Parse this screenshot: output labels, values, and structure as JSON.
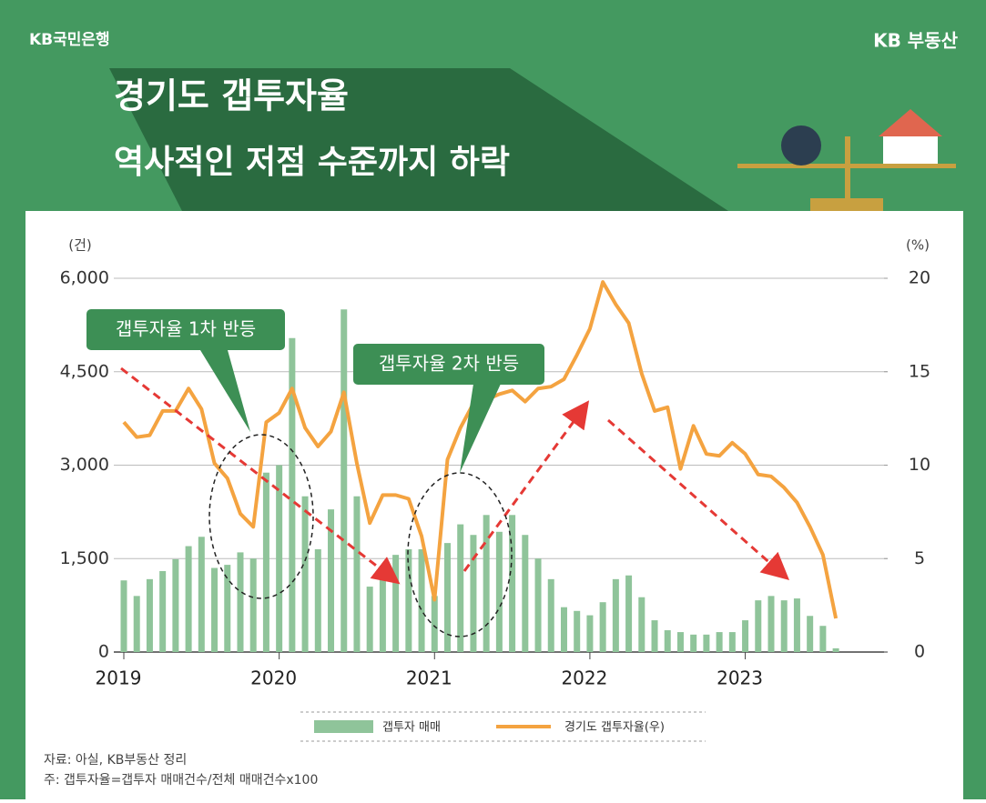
{
  "header": {
    "left": "KB국민은행",
    "right": "KB 부동산"
  },
  "chart_data": {
    "type": "bar",
    "title": "경기도 갭투자율",
    "subtitle": "역사적인 저점 수준까지 하락",
    "ylabel": "(건)",
    "y2label": "(%)",
    "categories": [
      "2019",
      null,
      null,
      null,
      null,
      null,
      null,
      null,
      null,
      null,
      null,
      null,
      "2020",
      null,
      null,
      null,
      null,
      null,
      null,
      null,
      null,
      null,
      null,
      null,
      "2021",
      null,
      null,
      null,
      null,
      null,
      null,
      null,
      null,
      null,
      null,
      null,
      "2022",
      null,
      null,
      null,
      null,
      null,
      null,
      null,
      null,
      null,
      null,
      null,
      "2023",
      null,
      null,
      null,
      null,
      null,
      null,
      null
    ],
    "series": [
      {
        "name": "갭투자 매매",
        "color": "#8fc49a",
        "values": [
          1150,
          900,
          1170,
          1300,
          1490,
          1700,
          1850,
          1350,
          1400,
          1600,
          1500,
          2880,
          3000,
          5040,
          2500,
          1650,
          2290,
          5500,
          2500,
          1050,
          1200,
          1560,
          1650,
          1650,
          900,
          1750,
          2050,
          1880,
          2200,
          1930,
          2200,
          1880,
          1500,
          1170,
          720,
          660,
          590,
          800,
          1170,
          1230,
          880,
          510,
          350,
          320,
          280,
          280,
          320,
          320,
          510,
          830,
          900,
          830,
          860,
          580,
          420,
          60
        ]
      },
      {
        "name": "경기도 갭투자율(우)",
        "color": "#f4a340",
        "type": "line",
        "axis": "y2",
        "values": [
          12.3,
          11.5,
          11.6,
          12.9,
          12.9,
          14.1,
          13.0,
          10.1,
          9.3,
          7.4,
          6.7,
          12.3,
          12.8,
          14.1,
          12.0,
          11.0,
          11.8,
          13.9,
          10.1,
          6.9,
          8.4,
          8.4,
          8.2,
          6.2,
          2.8,
          10.3,
          12.0,
          13.3,
          13.5,
          13.8,
          14.0,
          13.4,
          14.1,
          14.2,
          14.6,
          15.9,
          17.3,
          19.8,
          18.6,
          17.6,
          14.9,
          12.9,
          13.1,
          9.8,
          12.1,
          10.6,
          10.5,
          11.2,
          10.6,
          9.5,
          9.4,
          8.8,
          8.0,
          6.7,
          5.2,
          1.8
        ]
      }
    ],
    "ylim": [
      0,
      6000
    ],
    "yticks": [
      0,
      {
        "value": 1500,
        "label": "1,500"
      },
      {
        "value": 3000,
        "label": "3,000"
      },
      {
        "value": 4500,
        "label": "4,500"
      },
      {
        "value": 6000,
        "label": "6,000"
      }
    ],
    "y2lim": [
      0,
      20
    ],
    "y2ticks": [
      0,
      5,
      10,
      15,
      20
    ],
    "grid": true,
    "annotations": [
      "갭투자율 1차 반등",
      "갭투자율 2차 반등"
    ],
    "source": "자료: 아실, KB부동산 정리",
    "note": "주: 갭투자율=갭투자 매매건수/전체 매매건수x100"
  }
}
